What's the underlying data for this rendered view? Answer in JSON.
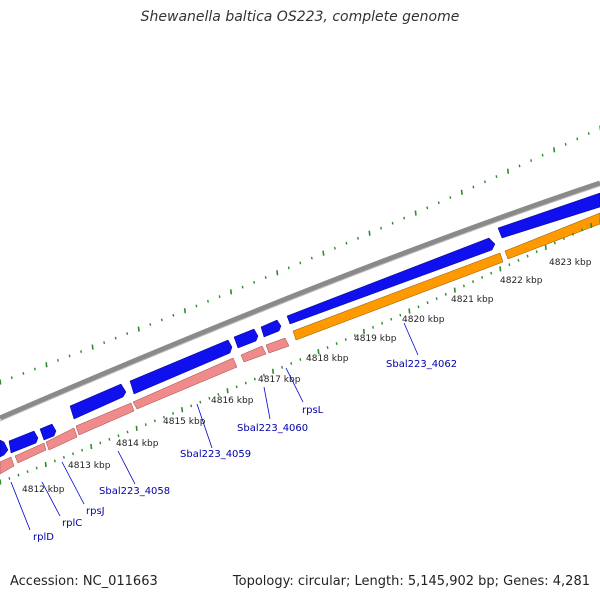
{
  "title": "Shewanella baltica OS223, complete genome",
  "accession": "Accession: NC_011663",
  "summary": "Topology: circular; Length: 5,145,902 bp; Genes: 4,281",
  "colors": {
    "backbone": "#808080",
    "gene_forward": "#0000ee",
    "gene_reverse_a": "#ee8888",
    "gene_reverse_b": "#ff9900",
    "tick_major": "#339933",
    "gene_label": "#0000aa"
  },
  "ticks": [
    {
      "label": "4812 kbp"
    },
    {
      "label": "4813 kbp"
    },
    {
      "label": "4814 kbp"
    },
    {
      "label": "4815 kbp"
    },
    {
      "label": "4816 kbp"
    },
    {
      "label": "4817 kbp"
    },
    {
      "label": "4818 kbp"
    },
    {
      "label": "4819 kbp"
    },
    {
      "label": "4820 kbp"
    },
    {
      "label": "4821 kbp"
    },
    {
      "label": "4822 kbp"
    },
    {
      "label": "4823 kbp"
    }
  ],
  "gene_labels": [
    {
      "name": "rplD"
    },
    {
      "name": "rplC"
    },
    {
      "name": "rpsJ"
    },
    {
      "name": "Sbal223_4058"
    },
    {
      "name": "Sbal223_4059"
    },
    {
      "name": "Sbal223_4060"
    },
    {
      "name": "rpsL"
    },
    {
      "name": "Sbal223_4062"
    }
  ]
}
